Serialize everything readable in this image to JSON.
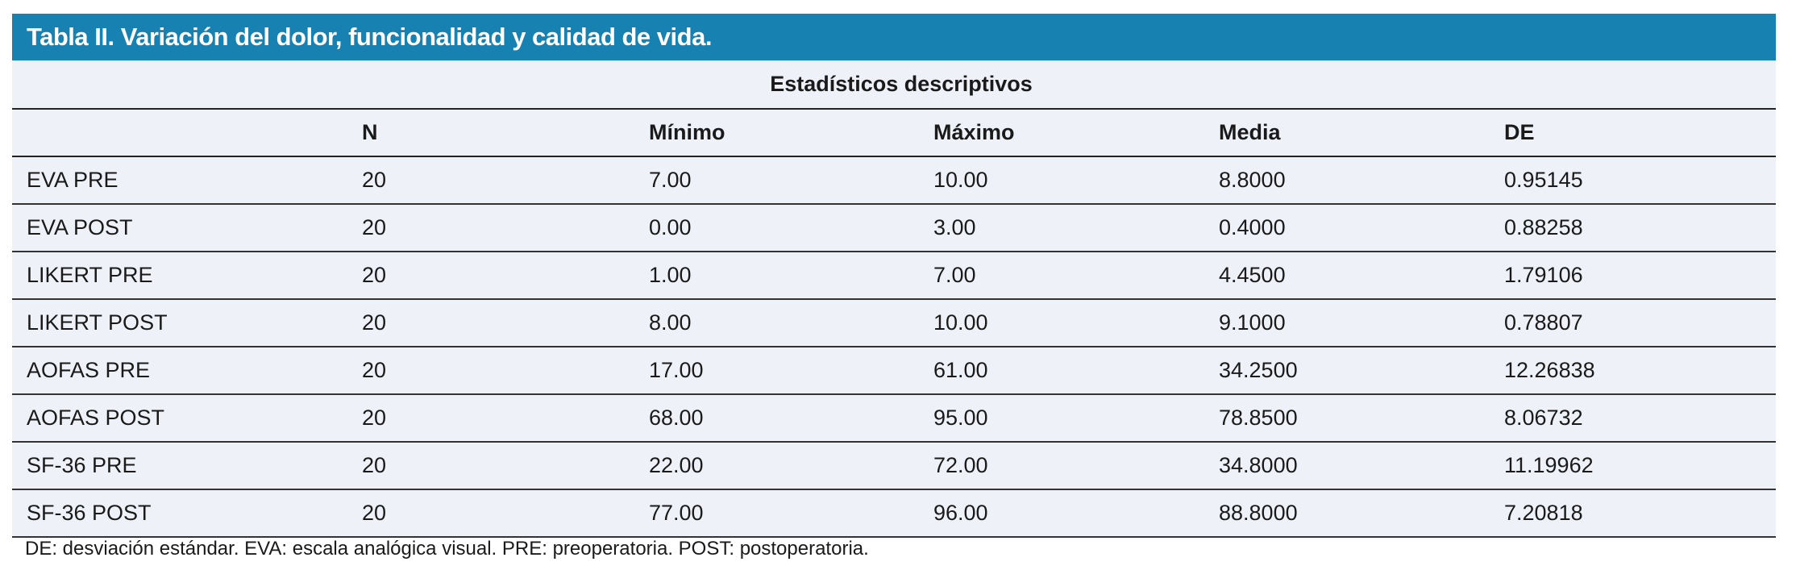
{
  "title": "Tabla II. Variación del dolor, funcionalidad y calidad de vida.",
  "colors": {
    "header": "#1781b1",
    "body": "#eef2f8"
  },
  "table": {
    "group_header": "Estadísticos descriptivos",
    "columns": [
      "",
      "N",
      "Mínimo",
      "Máximo",
      "Media",
      "DE"
    ],
    "rows": [
      [
        "EVA PRE",
        "20",
        "7.00",
        "10.00",
        "8.8000",
        "0.95145"
      ],
      [
        "EVA POST",
        "20",
        "0.00",
        "3.00",
        "0.4000",
        "0.88258"
      ],
      [
        "LIKERT PRE",
        "20",
        "1.00",
        "7.00",
        "4.4500",
        "1.79106"
      ],
      [
        "LIKERT POST",
        "20",
        "8.00",
        "10.00",
        "9.1000",
        "0.78807"
      ],
      [
        "AOFAS PRE",
        "20",
        "17.00",
        "61.00",
        "34.2500",
        "12.26838"
      ],
      [
        "AOFAS POST",
        "20",
        "68.00",
        "95.00",
        "78.8500",
        "8.06732"
      ],
      [
        "SF-36 PRE",
        "20",
        "22.00",
        "72.00",
        "34.8000",
        "11.19962"
      ],
      [
        "SF-36 POST",
        "20",
        "77.00",
        "96.00",
        "88.8000",
        "7.20818"
      ]
    ]
  },
  "footnote": "DE: desviación estándar. EVA: escala analógica visual. PRE: preoperatoria. POST: postoperatoria."
}
